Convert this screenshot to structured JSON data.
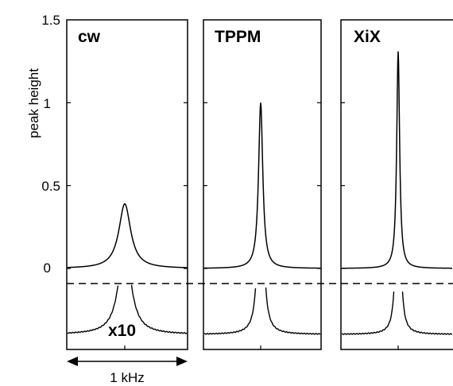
{
  "chart_data": {
    "type": "line",
    "ylabel": "peak height",
    "ylim": [
      0,
      1.5
    ],
    "yticks": [
      {
        "value": 0,
        "label": "0"
      },
      {
        "value": 0.5,
        "label": "0.5"
      },
      {
        "value": 1,
        "label": "1"
      },
      {
        "value": 1.5,
        "label": "1.5"
      }
    ],
    "scale_bar_label": "1 kHz",
    "magnified_label": "x10",
    "magnification": 10,
    "panels": [
      {
        "name": "cw",
        "peak_height": 0.39
      },
      {
        "name": "TPPM",
        "peak_height": 1.0
      },
      {
        "name": "XiX",
        "peak_height": 1.31
      }
    ]
  }
}
